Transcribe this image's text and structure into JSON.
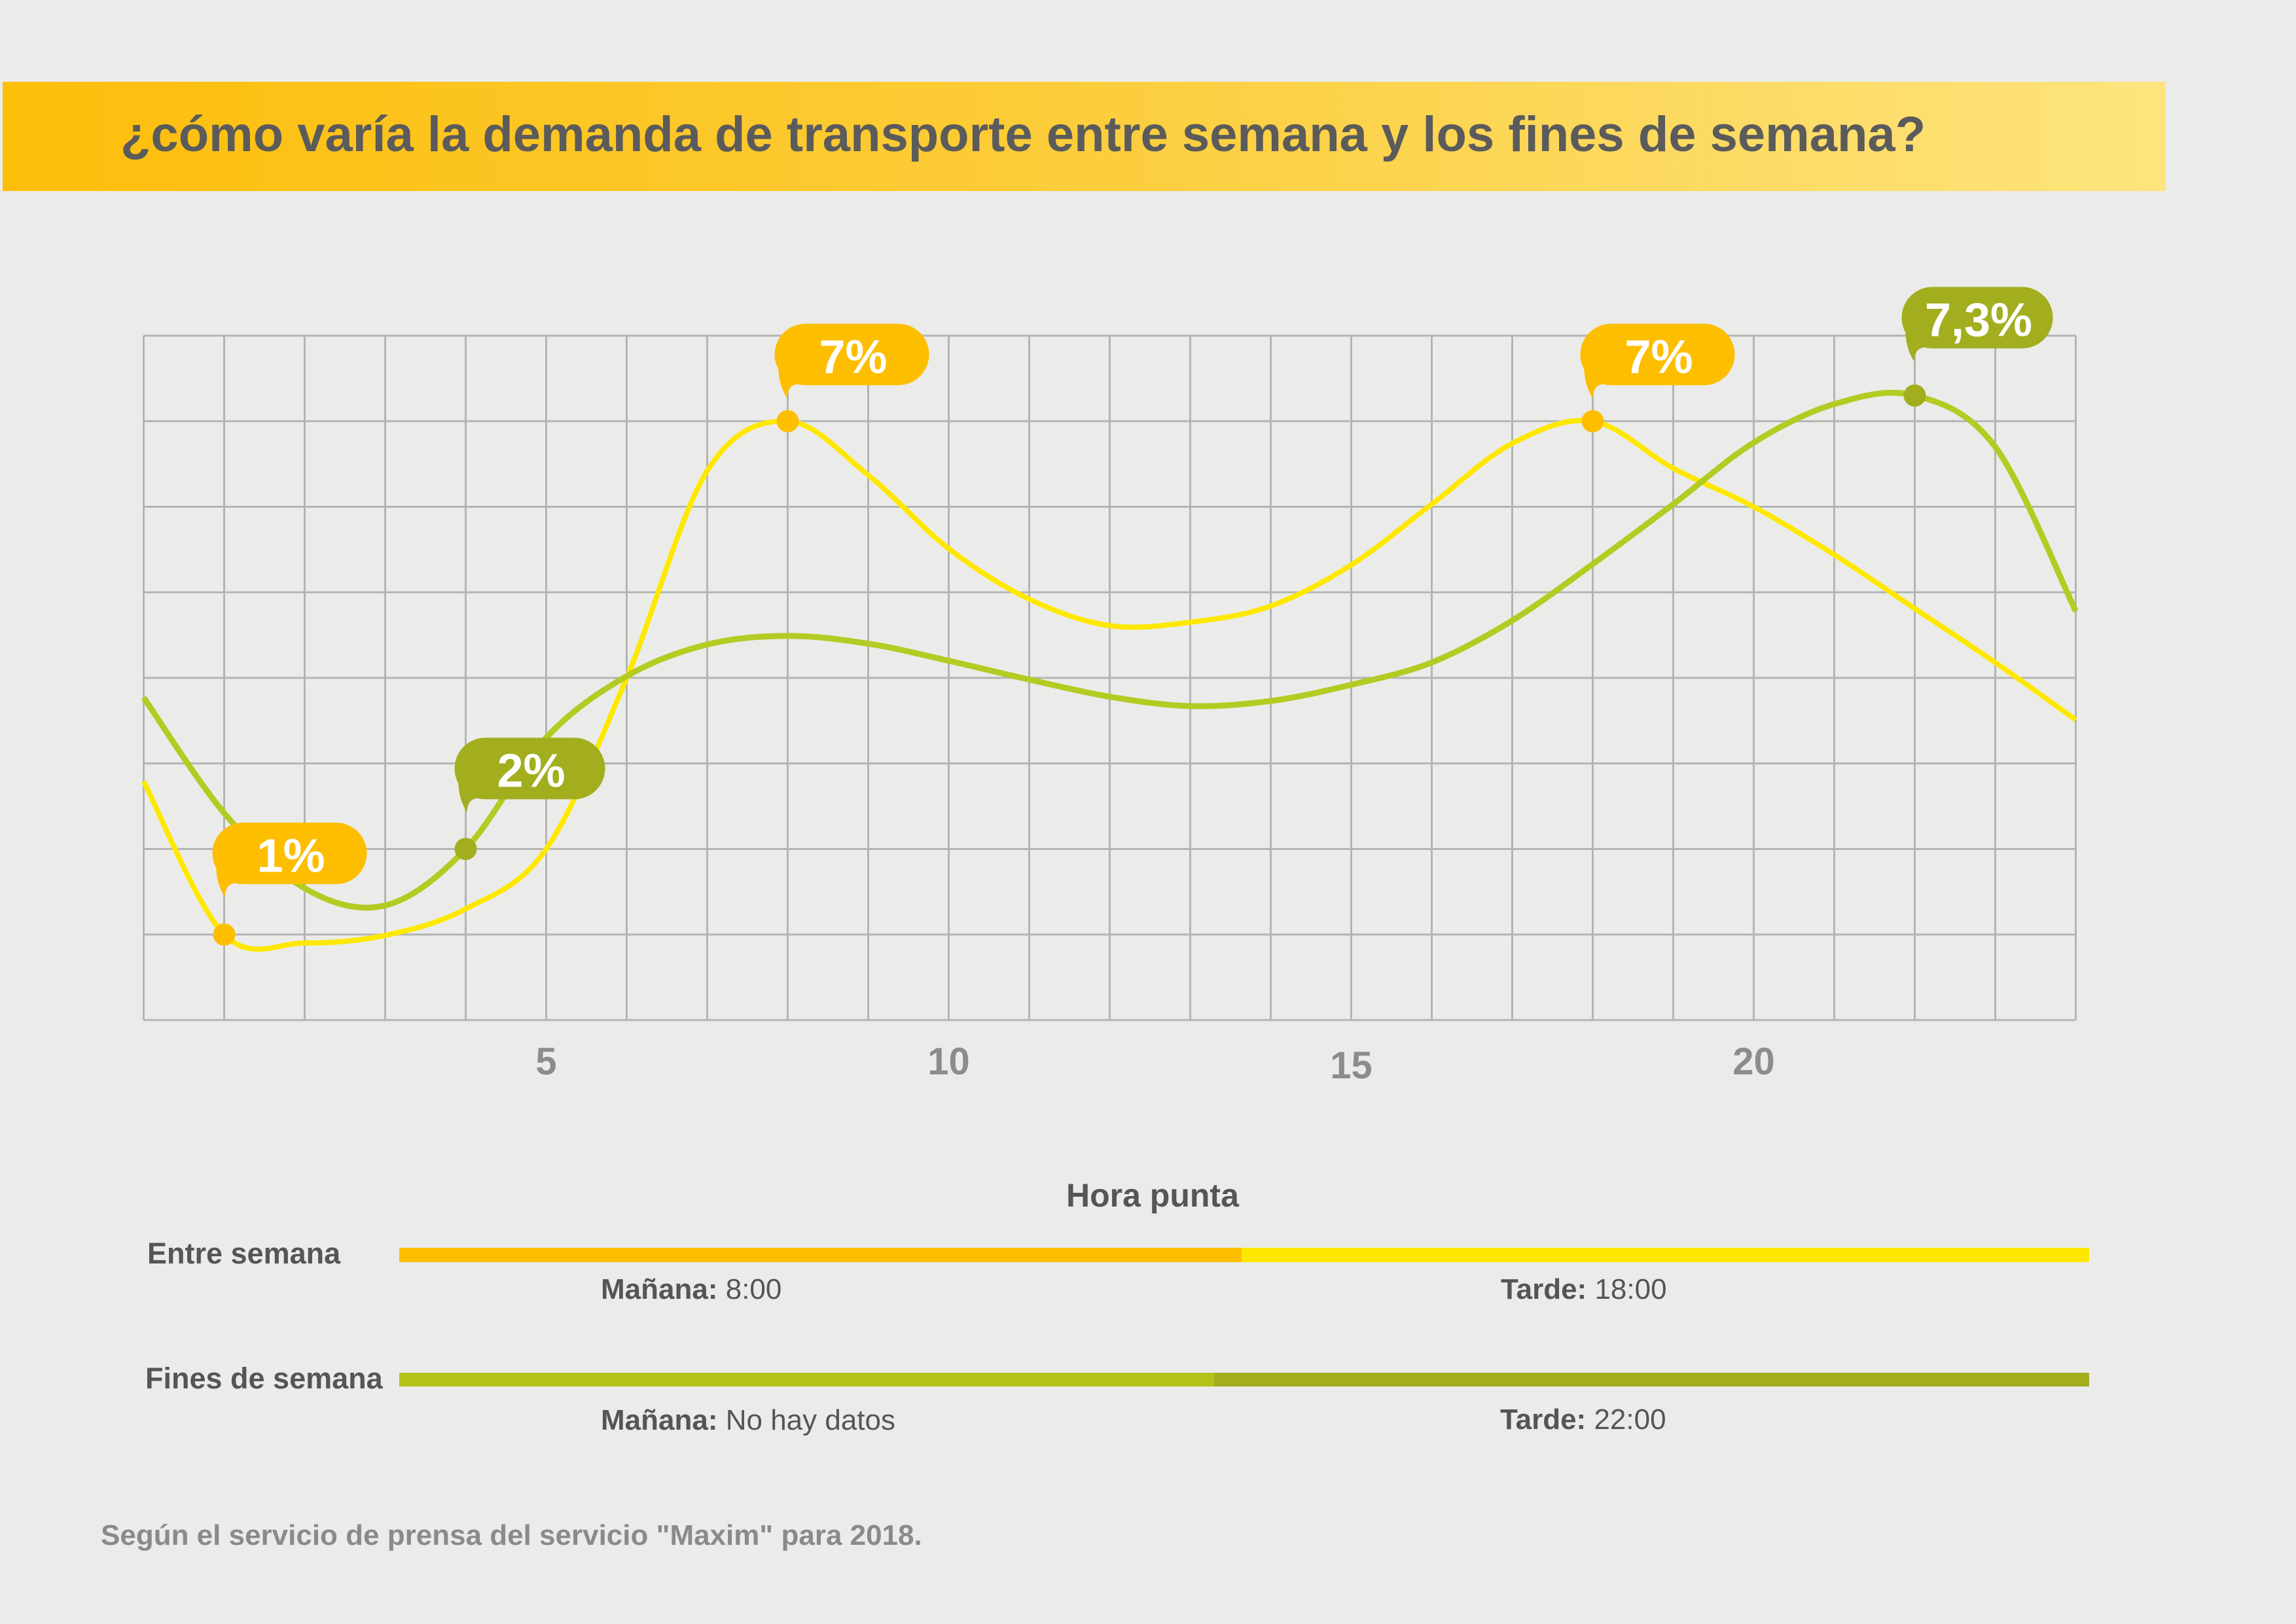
{
  "chart_data": {
    "type": "line",
    "title": "¿cómo varía la demanda de transporte entre semana y los fines de semana?",
    "xlabel": "",
    "ylabel": "",
    "xlim": [
      0,
      24
    ],
    "ylim": [
      0,
      8
    ],
    "grid": true,
    "x": [
      0,
      1,
      2,
      3,
      4,
      5,
      6,
      7,
      8,
      9,
      10,
      11,
      12,
      13,
      14,
      15,
      16,
      17,
      18,
      19,
      20,
      21,
      22,
      23,
      24
    ],
    "x_ticks": [
      5,
      10,
      15,
      20
    ],
    "series": [
      {
        "name": "Entre semana",
        "color": "#FFE800",
        "marker_color": "#FDBE00",
        "values": [
          2.79,
          1.0,
          0.9,
          0.99,
          1.3,
          2.0,
          4.0,
          6.42,
          7.0,
          6.37,
          5.51,
          4.92,
          4.61,
          4.65,
          4.84,
          5.32,
          6.03,
          6.74,
          7.0,
          6.45,
          6.0,
          5.44,
          4.81,
          4.18,
          3.51
        ]
      },
      {
        "name": "Fines de semana",
        "color": "#B3CB22",
        "marker_color": "#A2AE1E",
        "values": [
          3.77,
          2.42,
          1.54,
          1.34,
          2.0,
          3.3,
          4.02,
          4.39,
          4.49,
          4.4,
          4.2,
          3.98,
          3.78,
          3.67,
          3.73,
          3.92,
          4.18,
          4.67,
          5.33,
          6.03,
          6.75,
          7.2,
          7.3,
          6.7,
          4.78
        ]
      }
    ],
    "annotations": [
      {
        "series": 0,
        "x": 1,
        "y": 1,
        "label": "1%"
      },
      {
        "series": 1,
        "x": 4,
        "y": 2,
        "label": "2%"
      },
      {
        "series": 0,
        "x": 8,
        "y": 7,
        "label": "7%"
      },
      {
        "series": 0,
        "x": 18,
        "y": 7,
        "label": "7%"
      },
      {
        "series": 1,
        "x": 22,
        "y": 7.3,
        "label": "7,3%"
      }
    ]
  },
  "peak_hours": {
    "title": "Hora punta",
    "rows": [
      {
        "morning_label": "Mañana:",
        "morning_value": "8:00",
        "evening_label": "Tarde:",
        "evening_value": "18:00",
        "morning_color": "#FDBE00",
        "evening_color": "#FFE800"
      },
      {
        "morning_label": "Mañana:",
        "morning_value": "No hay datos",
        "evening_label": "Tarde:",
        "evening_value": "22:00",
        "morning_color": "#B4C21A",
        "evening_color": "#A2AE1E"
      }
    ]
  },
  "footer": {
    "source": "Según el servicio de prensa del servicio \"Maxim\" para 2018."
  },
  "colors": {
    "background": "#EBECEA",
    "banner_start": "#FDBE0B",
    "banner_end": "#FDE47E",
    "grid": "#B3B5B4",
    "text": "#5B5B5B",
    "muted_text": "#8C8C8C"
  }
}
